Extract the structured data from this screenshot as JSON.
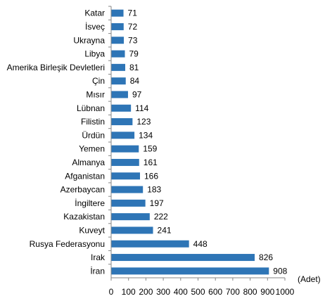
{
  "chart_data": {
    "type": "bar",
    "orientation": "horizontal",
    "categories": [
      "Katar",
      "İsveç",
      "Ukrayna",
      "Libya",
      "Amerika Birleşik Devletleri",
      "Çin",
      "Mısır",
      "Lübnan",
      "Filistin",
      "Ürdün",
      "Yemen",
      "Almanya",
      "Afganistan",
      "Azerbaycan",
      "İngiltere",
      "Kazakistan",
      "Kuveyt",
      "Rusya Federasyonu",
      "Irak",
      "İran"
    ],
    "values": [
      71,
      72,
      73,
      79,
      81,
      84,
      97,
      114,
      123,
      134,
      159,
      161,
      166,
      183,
      197,
      222,
      241,
      448,
      826,
      908
    ],
    "value_labels": [
      "71",
      "72",
      "73",
      "79",
      "81",
      "84",
      "97",
      "114",
      "123",
      "134",
      "159",
      "161",
      "166",
      "183",
      "197",
      "222",
      "241",
      "448",
      "826",
      "908"
    ],
    "xlim": [
      0,
      1000
    ],
    "xticks": [
      "0",
      "100",
      "200",
      "300",
      "400",
      "500",
      "600",
      "700",
      "800",
      "900",
      "1000"
    ],
    "unit_label": "(Adet)",
    "grid": false,
    "bar_color": "#2e75b6"
  }
}
